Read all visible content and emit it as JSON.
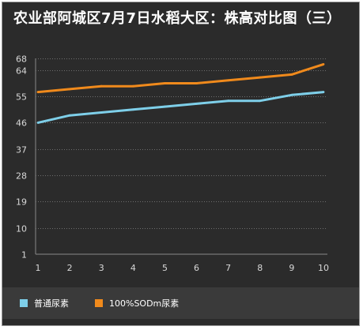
{
  "title": "农业部阿城区7月7日水稻大区：株高对比图（三）",
  "colors": {
    "background": "#2b2b2b",
    "legend_band": "#3a3a3a",
    "grid": "#6e6e6e",
    "text": "#ffffff"
  },
  "chart_data": {
    "type": "line",
    "title": "农业部阿城区7月7日水稻大区：株高对比图（三）",
    "x": [
      1,
      2,
      3,
      4,
      5,
      6,
      7,
      8,
      9,
      10
    ],
    "x_tick_labels": [
      "1",
      "2",
      "3",
      "4",
      "5",
      "6",
      "7",
      "8",
      "9",
      "10"
    ],
    "y_ticks": [
      1,
      10,
      19,
      28,
      37,
      46,
      55,
      64,
      68
    ],
    "ylim": [
      1,
      68
    ],
    "xlabel": "",
    "ylabel": "",
    "grid": "horizontal dotted",
    "legend_position": "bottom",
    "series": [
      {
        "name": "普通尿素",
        "color": "#7ecfe9",
        "values": [
          46,
          48.5,
          49.5,
          50.5,
          51.5,
          52.5,
          53.5,
          53.5,
          55.5,
          56.5
        ]
      },
      {
        "name": "100%SODm尿素",
        "color": "#f08a1c",
        "values": [
          56.5,
          57.5,
          58.5,
          58.5,
          59.5,
          59.5,
          60.5,
          61.5,
          62.5,
          66
        ]
      }
    ]
  }
}
